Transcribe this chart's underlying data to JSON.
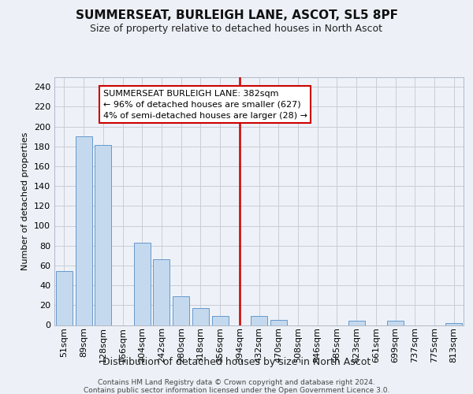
{
  "title": "SUMMERSEAT, BURLEIGH LANE, ASCOT, SL5 8PF",
  "subtitle": "Size of property relative to detached houses in North Ascot",
  "xlabel": "Distribution of detached houses by size in North Ascot",
  "ylabel": "Number of detached properties",
  "footer1": "Contains HM Land Registry data © Crown copyright and database right 2024.",
  "footer2": "Contains public sector information licensed under the Open Government Licence 3.0.",
  "annotation_line1": "SUMMERSEAT BURLEIGH LANE: 382sqm",
  "annotation_line2": "← 96% of detached houses are smaller (627)",
  "annotation_line3": "4% of semi-detached houses are larger (28) →",
  "categories": [
    "51sqm",
    "89sqm",
    "128sqm",
    "166sqm",
    "204sqm",
    "242sqm",
    "280sqm",
    "318sqm",
    "356sqm",
    "394sqm",
    "432sqm",
    "470sqm",
    "508sqm",
    "546sqm",
    "585sqm",
    "623sqm",
    "661sqm",
    "699sqm",
    "737sqm",
    "775sqm",
    "813sqm"
  ],
  "values": [
    54,
    190,
    181,
    0,
    83,
    66,
    29,
    17,
    9,
    0,
    9,
    5,
    0,
    0,
    0,
    4,
    0,
    4,
    0,
    0,
    2
  ],
  "bar_color": "#c5d9ee",
  "bar_edge_color": "#6699cc",
  "vline_color": "#cc0000",
  "vline_x_idx": 9,
  "bg_color": "#edf1f7",
  "plot_bg_color": "#eef2f8",
  "annotation_box_facecolor": "#ffffff",
  "annotation_box_edge": "#cc0000",
  "grid_color": "#c8cdd6",
  "ylim": [
    0,
    250
  ],
  "yticks": [
    0,
    20,
    40,
    60,
    80,
    100,
    120,
    140,
    160,
    180,
    200,
    220,
    240
  ],
  "title_fontsize": 11,
  "subtitle_fontsize": 9,
  "ylabel_fontsize": 8,
  "xlabel_fontsize": 9,
  "tick_fontsize": 8,
  "footer_fontsize": 6.5,
  "ann_fontsize": 8
}
